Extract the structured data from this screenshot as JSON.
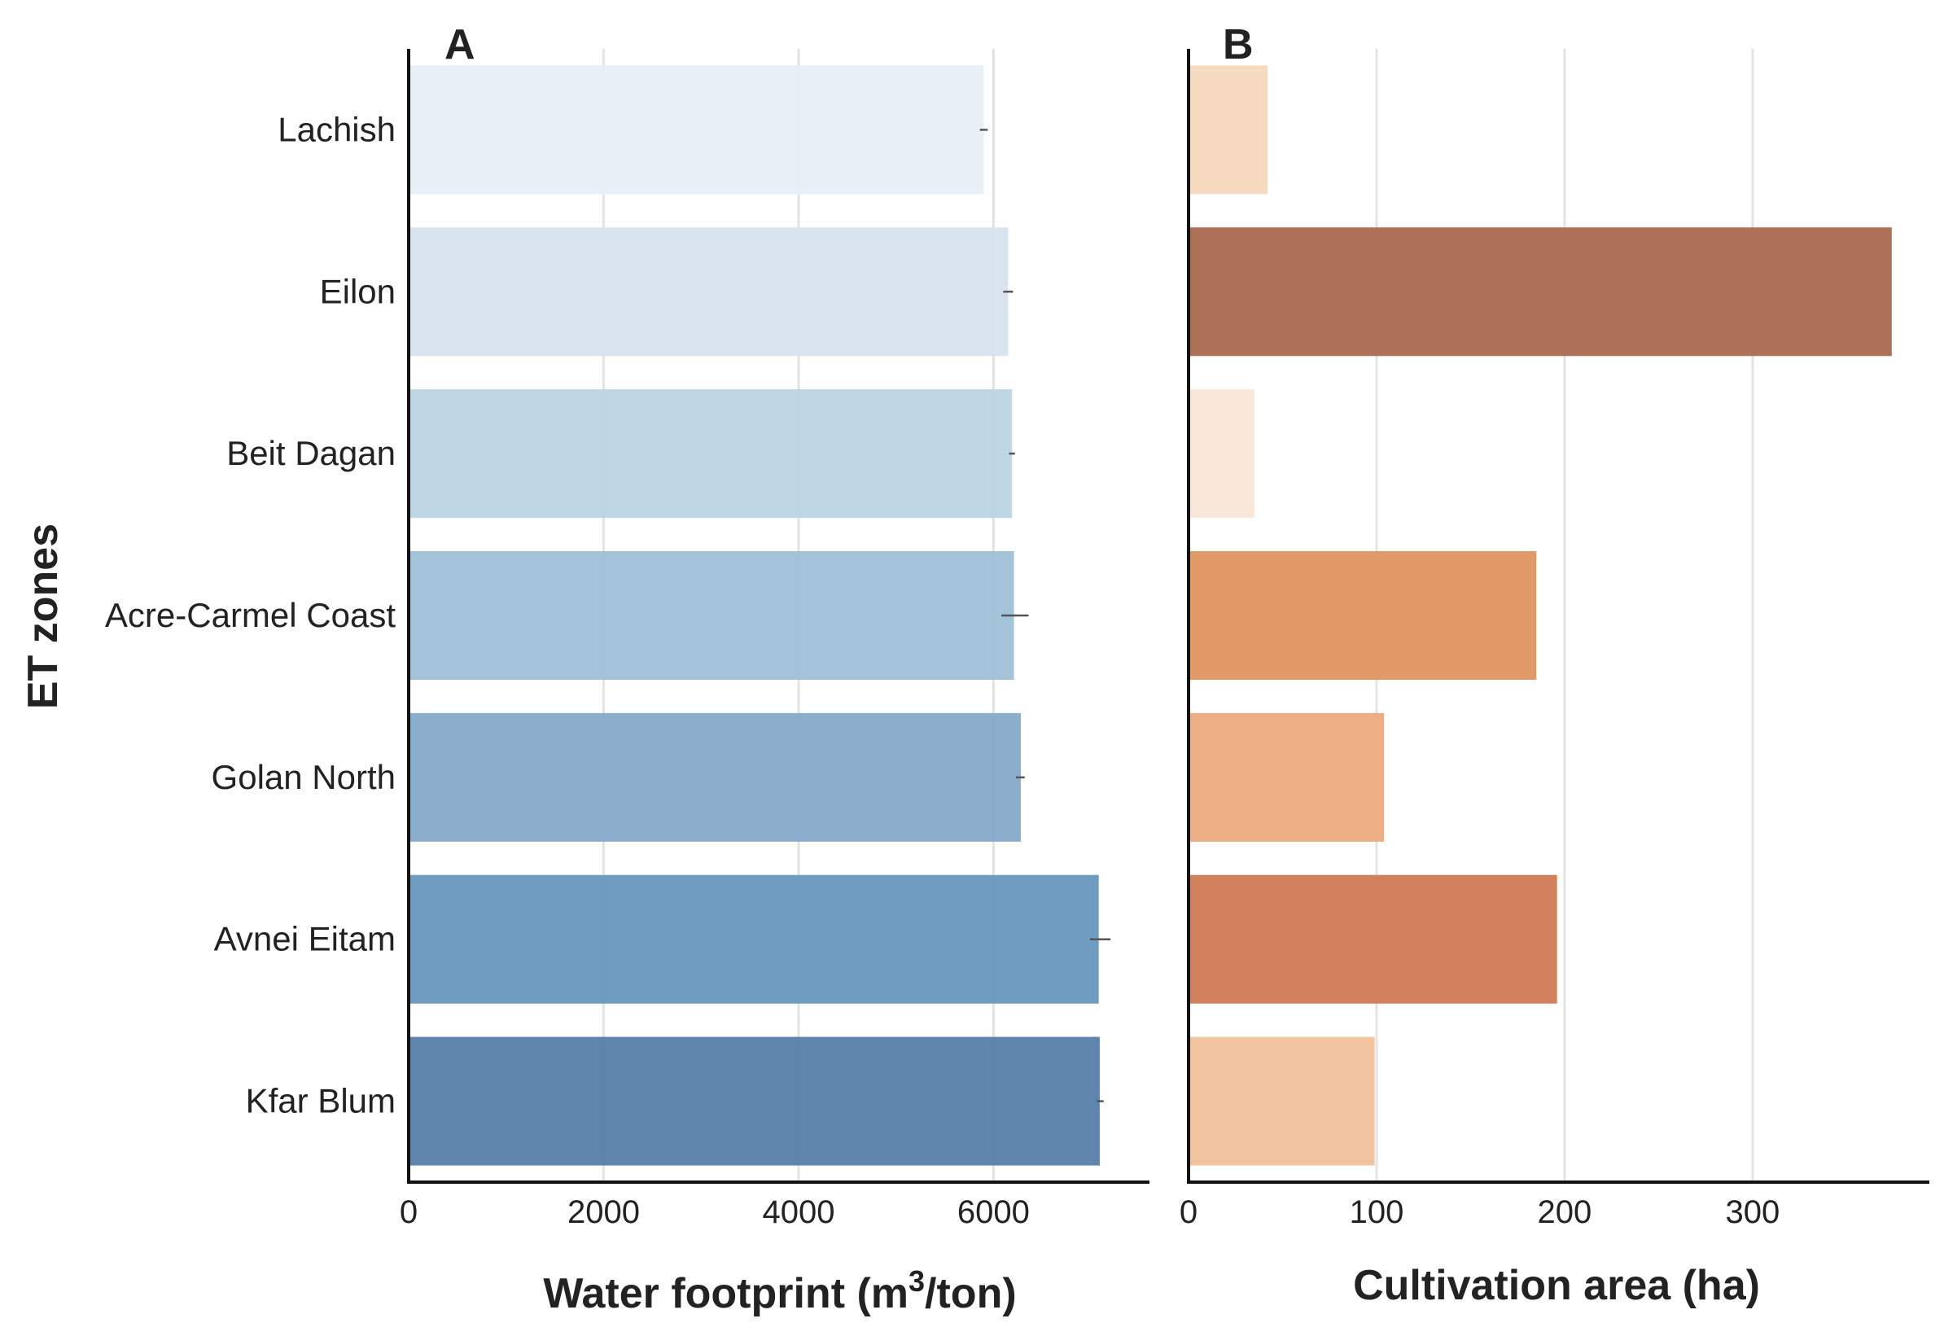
{
  "chart_data": [
    {
      "type": "bar",
      "orientation": "horizontal",
      "panel_label": "A",
      "categories": [
        "Lachish",
        "Eilon",
        "Beit Dagan",
        "Acre-Carmel Coast",
        "Golan North",
        "Avnei Eitam",
        "Kfar Blum"
      ],
      "values": [
        5900,
        6150,
        6190,
        6210,
        6280,
        7080,
        7090
      ],
      "error_low": [
        5860,
        6100,
        6160,
        6080,
        6230,
        6990,
        7060
      ],
      "error_high": [
        5940,
        6200,
        6220,
        6360,
        6320,
        7200,
        7130
      ],
      "xlabel_main": "Water footprint (m",
      "xlabel_sup": "3",
      "xlabel_tail": "/ton)",
      "ylabel": "ET zones",
      "xlim": [
        0,
        7600
      ],
      "xticks": [
        "0",
        "2000",
        "4000",
        "6000"
      ],
      "xtick_values": [
        0,
        2000,
        4000,
        6000
      ],
      "grid": "vertical",
      "colors": [
        "#e6eef7",
        "#d8e3ee",
        "#bcd4e3",
        "#9ec1d6",
        "#85abca",
        "#6a98bf",
        "#5a80aa"
      ]
    },
    {
      "type": "bar",
      "orientation": "horizontal",
      "panel_label": "B",
      "categories": [
        "Lachish",
        "Eilon",
        "Beit Dagan",
        "Acre-Carmel Coast",
        "Golan North",
        "Avnei Eitam",
        "Kfar Blum"
      ],
      "values": [
        42,
        374,
        35,
        185,
        104,
        196,
        99
      ],
      "xlabel": "Cultivation area (ha)",
      "xlim": [
        0,
        394
      ],
      "xticks": [
        "0",
        "100",
        "200",
        "300"
      ],
      "xtick_values": [
        0,
        100,
        200,
        300
      ],
      "grid": "vertical",
      "colors": [
        "#f5d9bd",
        "#aa6b51",
        "#f9e6d7",
        "#e09562",
        "#ebac80",
        "#cf7d56",
        "#f0c39c"
      ]
    }
  ]
}
